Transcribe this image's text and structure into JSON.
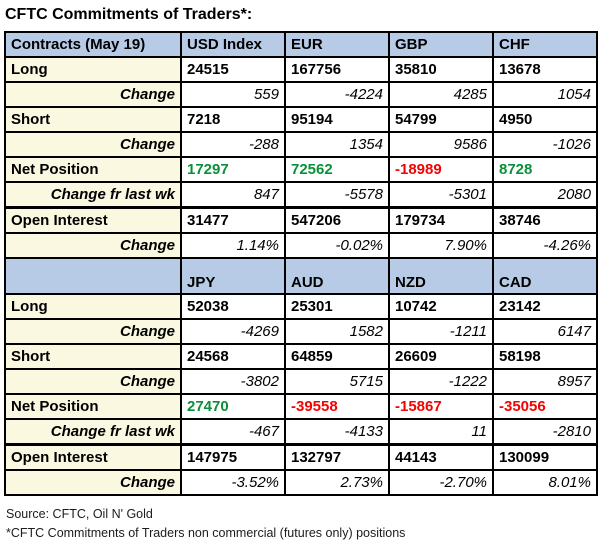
{
  "title": "CFTC Commitments of Traders*:",
  "colors": {
    "header_bg": "#b7cbe7",
    "label_bg": "#fbf8e1",
    "positive": "#0a9038",
    "negative": "#f00505",
    "grid": "#000000",
    "footer_text": "#1c1c1c"
  },
  "chart_data": {
    "type": "table",
    "title": "CFTC Commitments of Traders*:",
    "sections": [
      {
        "corner_label": "Contracts (May 19)",
        "columns": [
          "USD Index",
          "EUR",
          "GBP",
          "CHF"
        ],
        "rows": [
          {
            "label": "Long",
            "style": "data",
            "values": [
              "24515",
              "167756",
              "35810",
              "13678"
            ]
          },
          {
            "label": "Change",
            "style": "change",
            "values": [
              "559",
              "-4224",
              "4285",
              "1054"
            ]
          },
          {
            "label": "Short",
            "style": "data",
            "values": [
              "7218",
              "95194",
              "54799",
              "4950"
            ]
          },
          {
            "label": "Change",
            "style": "change",
            "values": [
              "-288",
              "1354",
              "9586",
              "-1026"
            ]
          },
          {
            "label": "Net Position",
            "style": "data",
            "colored": true,
            "values": [
              "17297",
              "72562",
              "-18989",
              "8728"
            ]
          },
          {
            "label": "Change fr last wk",
            "style": "change",
            "values": [
              "847",
              "-5578",
              "-5301",
              "2080"
            ]
          },
          {
            "label": "Open Interest",
            "style": "data",
            "thick_top": true,
            "values": [
              "31477",
              "547206",
              "179734",
              "38746"
            ]
          },
          {
            "label": "Change",
            "style": "change",
            "values": [
              "1.14%",
              "-0.02%",
              "7.90%",
              "-4.26%"
            ]
          }
        ]
      },
      {
        "corner_label": "",
        "columns": [
          "JPY",
          "AUD",
          "NZD",
          "CAD"
        ],
        "rows": [
          {
            "label": "Long",
            "style": "data",
            "values": [
              "52038",
              "25301",
              "10742",
              "23142"
            ]
          },
          {
            "label": "Change",
            "style": "change",
            "values": [
              "-4269",
              "1582",
              "-1211",
              "6147"
            ]
          },
          {
            "label": "Short",
            "style": "data",
            "values": [
              "24568",
              "64859",
              "26609",
              "58198"
            ]
          },
          {
            "label": "Change",
            "style": "change",
            "values": [
              "-3802",
              "5715",
              "-1222",
              "8957"
            ]
          },
          {
            "label": "Net Position",
            "style": "data",
            "colored": true,
            "values": [
              "27470",
              "-39558",
              "-15867",
              "-35056"
            ]
          },
          {
            "label": "Change fr last wk",
            "style": "change",
            "values": [
              "-467",
              "-4133",
              "11",
              "-2810"
            ]
          },
          {
            "label": "Open Interest",
            "style": "data",
            "thick_top": true,
            "values": [
              "147975",
              "132797",
              "44143",
              "130099"
            ]
          },
          {
            "label": "Change",
            "style": "change",
            "values": [
              "-3.52%",
              "2.73%",
              "-2.70%",
              "8.01%"
            ]
          }
        ]
      }
    ]
  },
  "footer": {
    "source": "Source: CFTC, Oil N' Gold",
    "note": "*CFTC Commitments of Traders non commercial (futures only) positions"
  }
}
